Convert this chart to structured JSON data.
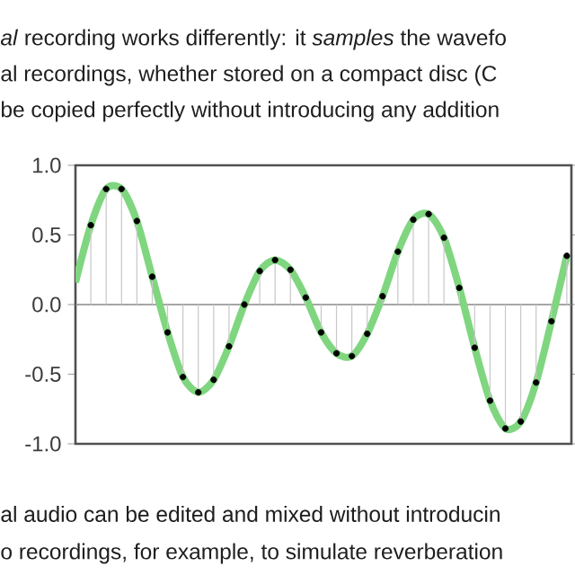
{
  "chart_data": {
    "type": "lollipop",
    "categories": [
      null,
      null,
      null,
      null,
      null,
      null,
      null,
      null,
      null,
      null,
      null,
      null,
      null,
      null,
      null,
      null,
      null,
      null,
      null,
      null,
      null,
      null,
      null,
      null,
      null,
      null,
      null,
      null,
      null,
      null,
      null,
      null,
      null
    ],
    "series": [
      {
        "type": "line",
        "color": "#7fd67f",
        "marker": "none",
        "values": [
          0.16,
          0.57,
          0.83,
          0.83,
          0.6,
          0.2,
          -0.2,
          -0.52,
          -0.63,
          -0.54,
          -0.3,
          0.0,
          0.24,
          0.32,
          0.25,
          0.05,
          -0.2,
          -0.35,
          -0.37,
          -0.21,
          0.06,
          0.38,
          0.61,
          0.65,
          0.48,
          0.12,
          -0.31,
          -0.69,
          -0.89,
          -0.84,
          -0.56,
          -0.12,
          0.35
        ]
      },
      {
        "color": "#000000",
        "marker": "circle",
        "values": [
          null,
          0.57,
          0.83,
          0.83,
          0.6,
          0.2,
          -0.2,
          -0.52,
          -0.63,
          -0.54,
          -0.3,
          0.0,
          0.24,
          0.32,
          0.25,
          0.05,
          -0.2,
          -0.35,
          -0.37,
          -0.21,
          0.06,
          0.38,
          0.61,
          0.65,
          0.48,
          0.12,
          -0.31,
          -0.69,
          -0.89,
          -0.84,
          -0.56,
          -0.12,
          0.35
        ]
      }
    ],
    "ylim": [
      -1.0,
      1.0
    ],
    "yticks": [
      {
        "value": -1.0,
        "label": "-1.0"
      },
      {
        "value": -0.5,
        "label": "-0.5"
      },
      {
        "value": 0,
        "label": "0.0"
      },
      {
        "value": 0.5,
        "label": "0.5"
      },
      {
        "value": 1.0,
        "label": "1.0"
      }
    ],
    "tick_labels": "y",
    "grid": false,
    "ref_lines": [
      {
        "axis": "y",
        "value": 0,
        "color": "#888888"
      }
    ],
    "annotations": [
      "*al* recording works differently: it *samples* the wavefo",
      "al recordings, whether stored on a compact disc (C",
      "be copied perfectly without introducing any addition",
      "al audio can be edited and mixed without introducin",
      "o recordings, for example, to simulate reverberation"
    ]
  }
}
